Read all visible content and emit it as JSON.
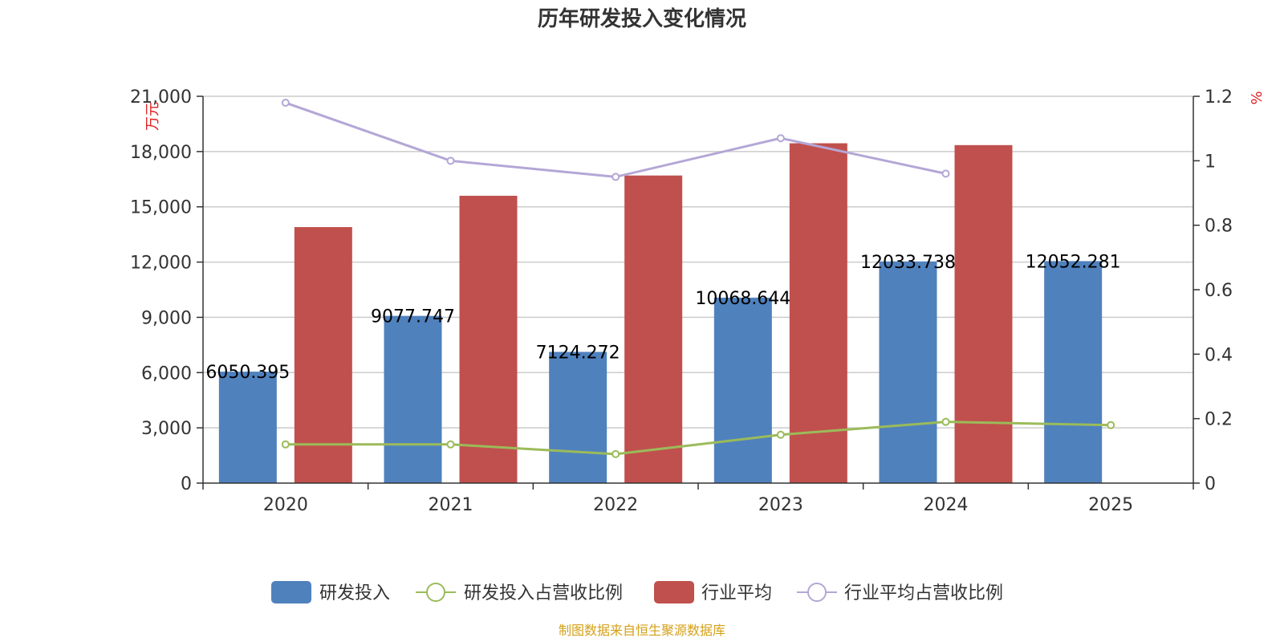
{
  "chart_data": {
    "type": "bar",
    "title": "历年研发投入变化情况",
    "categories": [
      "2020",
      "2021",
      "2022",
      "2023",
      "2024",
      "2025"
    ],
    "left_axis": {
      "unit": "万元",
      "ylim": [
        0,
        21000
      ],
      "ticks": [
        0,
        3000,
        6000,
        9000,
        12000,
        15000,
        18000,
        21000
      ],
      "tick_labels": [
        "0",
        "3,000",
        "6,000",
        "9,000",
        "12,000",
        "15,000",
        "18,000",
        "21,000"
      ]
    },
    "right_axis": {
      "unit": "%",
      "ylim": [
        0,
        1.2
      ],
      "ticks": [
        0,
        0.2,
        0.4,
        0.6,
        0.8,
        1,
        1.2
      ],
      "tick_labels": [
        "0",
        "0.2",
        "0.4",
        "0.6",
        "0.8",
        "1",
        "1.2"
      ]
    },
    "series": [
      {
        "name": "研发投入",
        "type": "bar",
        "axis": "left",
        "color": "#4f81bd",
        "values": [
          6050.395,
          9077.747,
          7124.272,
          10068.644,
          12033.738,
          12052.281
        ],
        "labels": [
          "6050.395",
          "9077.747",
          "7124.272",
          "10068.644",
          "12033.738",
          "12052.281"
        ]
      },
      {
        "name": "研发投入占营收比例",
        "type": "line",
        "axis": "right",
        "color": "#9bbb59",
        "values": [
          0.12,
          0.12,
          0.09,
          0.15,
          0.19,
          0.18
        ]
      },
      {
        "name": "行业平均",
        "type": "bar",
        "axis": "left",
        "color": "#c0504d",
        "values": [
          13900,
          15600,
          16700,
          18450,
          18350,
          null
        ]
      },
      {
        "name": "行业平均占营收比例",
        "type": "line",
        "axis": "right",
        "color": "#b4a7d6",
        "values": [
          1.18,
          1.0,
          0.95,
          1.07,
          0.96,
          null
        ]
      }
    ],
    "grid": true,
    "legend_position": "bottom"
  },
  "source": "制图数据来自恒生聚源数据库"
}
